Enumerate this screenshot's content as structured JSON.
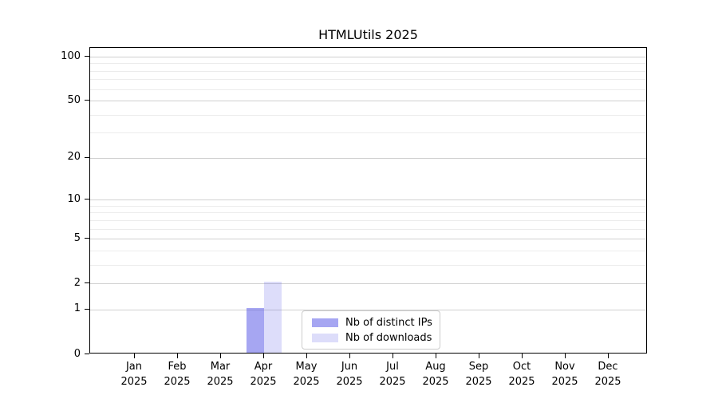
{
  "title": "HTMLUtils 2025",
  "legend": {
    "items": [
      {
        "label": "Nb of distinct IPs",
        "color": "rgba(85,85,230,0.52)",
        "color_hex_on_white": "#a6a6f2"
      },
      {
        "label": "Nb of downloads",
        "color": "rgba(85,85,230,0.20)",
        "color_hex_on_white": "#ddddf9"
      }
    ]
  },
  "chart_data": {
    "type": "bar",
    "title": "HTMLUtils 2025",
    "categories": [
      {
        "month": "Jan",
        "year": "2025"
      },
      {
        "month": "Feb",
        "year": "2025"
      },
      {
        "month": "Mar",
        "year": "2025"
      },
      {
        "month": "Apr",
        "year": "2025"
      },
      {
        "month": "May",
        "year": "2025"
      },
      {
        "month": "Jun",
        "year": "2025"
      },
      {
        "month": "Jul",
        "year": "2025"
      },
      {
        "month": "Aug",
        "year": "2025"
      },
      {
        "month": "Sep",
        "year": "2025"
      },
      {
        "month": "Oct",
        "year": "2025"
      },
      {
        "month": "Nov",
        "year": "2025"
      },
      {
        "month": "Dec",
        "year": "2025"
      }
    ],
    "series": [
      {
        "name": "Nb of distinct IPs",
        "color": "rgba(85,85,230,0.52)",
        "values": [
          0,
          0,
          0,
          1,
          0,
          0,
          0,
          0,
          0,
          0,
          0,
          0
        ]
      },
      {
        "name": "Nb of downloads",
        "color": "rgba(85,85,230,0.20)",
        "values": [
          0,
          0,
          0,
          2,
          0,
          0,
          0,
          0,
          0,
          0,
          0,
          0
        ]
      }
    ],
    "xlabel": "",
    "ylabel": "",
    "yscale": "log10(1+v)",
    "ylim": [
      0,
      113
    ],
    "y_major_ticks": [
      0,
      1,
      2,
      5,
      10,
      20,
      50,
      100
    ],
    "y_minor_gridlines": [
      3,
      4,
      6,
      7,
      8,
      9,
      30,
      40,
      60,
      70,
      80,
      90
    ],
    "grid": "horizontal",
    "grid_major_color": "#d0d0d0",
    "grid_minor_color": "#ececec",
    "axis_color": "#000000",
    "legend_position": "lower-center"
  }
}
